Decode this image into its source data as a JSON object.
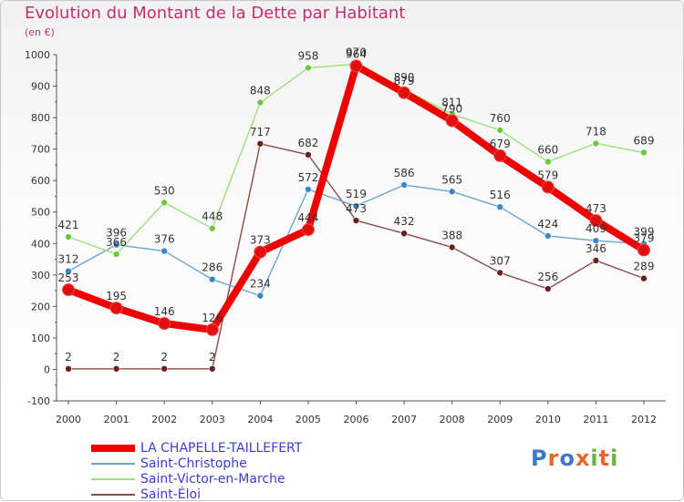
{
  "title": "Evolution du Montant de la Dette par Habitant",
  "subtitle": "(en €)",
  "logo": {
    "text": "Proxiti",
    "letters": [
      "P",
      "r",
      "o",
      "x",
      "i",
      "t",
      "i"
    ],
    "colors": [
      "#3b78c9",
      "#e8662a",
      "#3b78c9",
      "#e8662a",
      "#68b341",
      "#e8662a",
      "#68b341"
    ]
  },
  "chart_data": {
    "type": "line",
    "title": "Evolution du Montant de la Dette par Habitant",
    "ylabel": "(en €)",
    "x": [
      "2000",
      "2001",
      "2002",
      "2003",
      "2004",
      "2005",
      "2006",
      "2007",
      "2008",
      "2009",
      "2010",
      "2011",
      "2012"
    ],
    "ylim": [
      -100,
      1000
    ],
    "yticks": [
      -100,
      0,
      100,
      200,
      300,
      400,
      500,
      600,
      700,
      800,
      900,
      1000
    ],
    "grid": false,
    "legend_position": "bottom-left",
    "series": [
      {
        "name": "LA CHAPELLE-TAILLEFERT",
        "color": "#ee0000",
        "marker": "#e01010",
        "width": 8,
        "radius": 6.5,
        "values": [
          253,
          195,
          146,
          126,
          373,
          444,
          964,
          879,
          790,
          679,
          579,
          473,
          379
        ]
      },
      {
        "name": "Saint-Christophe",
        "color": "#6ba3d6",
        "marker": "#3a87c9",
        "width": 1.4,
        "radius": 3.5,
        "values": [
          312,
          396,
          376,
          286,
          234,
          572,
          519,
          586,
          565,
          516,
          424,
          409,
          399
        ]
      },
      {
        "name": "Saint-Victor-en-Marche",
        "color": "#9be07a",
        "marker": "#6cc93c",
        "width": 1.4,
        "radius": 3.5,
        "values": [
          421,
          366,
          530,
          448,
          848,
          958,
          970,
          890,
          811,
          760,
          660,
          718,
          689
        ]
      },
      {
        "name": "Saint-Éloi",
        "color": "#8c4a4a",
        "marker": "#6b1f1f",
        "width": 1.4,
        "radius": 3.5,
        "values": [
          2,
          2,
          2,
          2,
          717,
          682,
          473,
          432,
          388,
          307,
          256,
          346,
          289
        ]
      }
    ]
  }
}
